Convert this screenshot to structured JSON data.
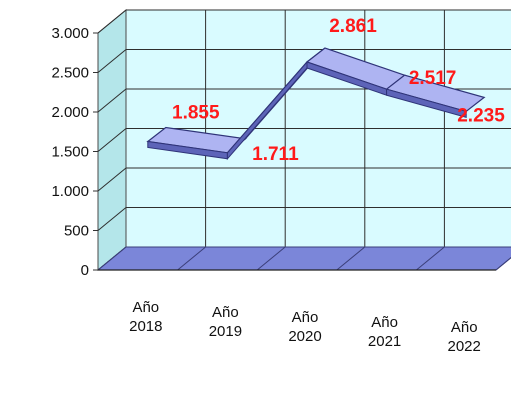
{
  "chart_data": {
    "type": "line",
    "style": "3d-ribbon",
    "categories": [
      [
        "Año",
        "2018"
      ],
      [
        "Año",
        "2019"
      ],
      [
        "Año",
        "2020"
      ],
      [
        "Año",
        "2021"
      ],
      [
        "Año",
        "2022"
      ]
    ],
    "values": [
      1855,
      1711,
      2861,
      2517,
      2235
    ],
    "data_labels": [
      "1.855",
      "1.711",
      "2.861",
      "2.517",
      "2.235"
    ],
    "yticks": [
      {
        "value": 0,
        "label": "0"
      },
      {
        "value": 500,
        "label": "500"
      },
      {
        "value": 1000,
        "label": "1.000"
      },
      {
        "value": 1500,
        "label": "1.500"
      },
      {
        "value": 2000,
        "label": "2.000"
      },
      {
        "value": 2500,
        "label": "2.500"
      },
      {
        "value": 3000,
        "label": "3.000"
      }
    ],
    "ylim": [
      0,
      3000
    ],
    "grid": true,
    "legend": "none",
    "title": "",
    "xlabel": "",
    "ylabel": "",
    "colors": {
      "walls": "#d9fbff",
      "floor": "#7b86d9",
      "ribbon_top": "#aeb4f2",
      "ribbon_side": "#5d64b8",
      "data_labels": "#ff1a1a",
      "grid": "#2e2e2e"
    }
  }
}
